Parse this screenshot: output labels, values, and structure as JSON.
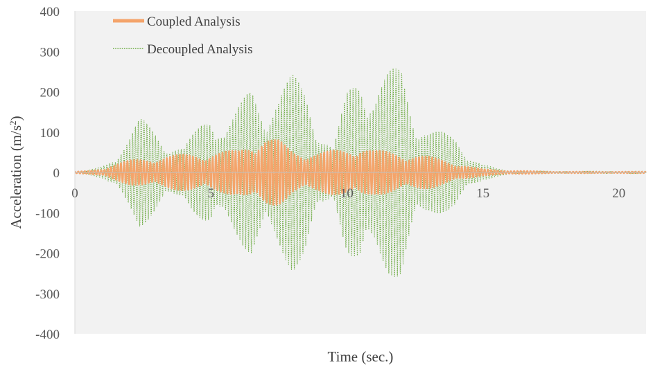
{
  "chart_data": {
    "type": "line",
    "xlabel": "Time (sec.)",
    "ylabel": "Acceleration (m/s²)",
    "xlim": [
      0,
      21
    ],
    "ylim": [
      -400,
      400
    ],
    "x_ticks": [
      "0",
      "5",
      "10",
      "15",
      "20"
    ],
    "y_ticks": [
      "400",
      "300",
      "200",
      "100",
      "0",
      "-100",
      "-200",
      "-300",
      "-400"
    ],
    "legend_position": "top-left",
    "grid": false,
    "series": [
      {
        "name": "Coupled Analysis",
        "color": "#F4A46B",
        "style": "solid",
        "envelope": {
          "t": [
            0,
            0.5,
            1.0,
            1.4,
            2.0,
            3.0,
            4.0,
            5.0,
            6.0,
            6.5,
            7.0,
            7.5,
            8.0,
            9.0,
            10.0,
            10.5,
            11.0,
            12.0,
            13.0,
            14.0,
            14.5,
            15.0,
            16.0,
            17.0,
            18.0,
            19.0,
            20.0,
            21.0
          ],
          "amp": [
            2,
            4,
            10,
            20,
            30,
            40,
            45,
            50,
            55,
            80,
            90,
            80,
            55,
            50,
            60,
            70,
            55,
            50,
            40,
            25,
            15,
            8,
            5,
            3,
            2,
            2,
            2,
            2
          ]
        }
      },
      {
        "name": "Decoupled Analysis",
        "color": "#70AD47",
        "style": "dotted",
        "envelope": {
          "t": [
            0,
            0.5,
            1.0,
            1.5,
            2.0,
            2.4,
            3.0,
            3.5,
            4.0,
            4.5,
            5.0,
            5.5,
            6.0,
            6.5,
            7.0,
            7.5,
            8.0,
            8.5,
            9.0,
            9.5,
            10.0,
            10.5,
            11.0,
            11.5,
            12.0,
            12.5,
            13.0,
            13.5,
            14.0,
            14.5,
            15.0,
            15.5,
            16.0,
            17.0,
            18.0,
            19.0,
            20.0,
            21.0
          ],
          "amp": [
            2,
            5,
            15,
            45,
            90,
            135,
            110,
            70,
            60,
            110,
            165,
            110,
            160,
            220,
            170,
            200,
            245,
            220,
            110,
            60,
            200,
            275,
            210,
            250,
            270,
            150,
            110,
            100,
            90,
            45,
            20,
            10,
            5,
            3,
            3,
            3,
            3,
            3
          ]
        }
      }
    ]
  }
}
